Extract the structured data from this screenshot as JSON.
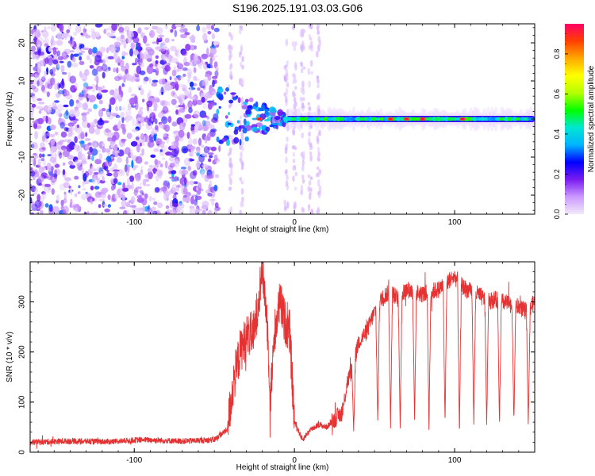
{
  "title": "S196.2025.191.03.03.G06",
  "chart_data": [
    {
      "type": "heatmap",
      "title": "S196.2025.191.03.03.G06",
      "xlabel": "Height of straight line (km)",
      "ylabel": "Frequency (Hz)",
      "xlim": [
        -165,
        150
      ],
      "ylim": [
        -25,
        25
      ],
      "x_ticks": [
        -100,
        0,
        100
      ],
      "y_ticks": [
        -20,
        -10,
        0,
        10,
        20
      ],
      "colorbar": {
        "label": "Normalized spectral amplitude",
        "range": [
          0.0,
          0.95
        ],
        "ticks": [
          0.0,
          0.2,
          0.4,
          0.6,
          0.8
        ],
        "colors": [
          "#f2eaf9",
          "#cc99ff",
          "#7a1cf0",
          "#0000ff",
          "#00b4ff",
          "#00e6d2",
          "#00ff00",
          "#b4ff00",
          "#ffff00",
          "#ffaa00",
          "#ff4000",
          "#ff0066"
        ]
      },
      "regions": [
        {
          "name": "noise",
          "x": [
            -165,
            -48
          ],
          "y": [
            -25,
            25
          ],
          "amplitude": 0.08
        },
        {
          "name": "transition",
          "x": [
            -48,
            -5
          ],
          "y": [
            -8,
            8
          ],
          "amplitude": 0.25
        },
        {
          "name": "signal-band",
          "x": [
            -5,
            150
          ],
          "y": [
            -0.5,
            0.5
          ],
          "amplitude": 0.55
        }
      ],
      "hot_spots": [
        {
          "x": -22,
          "y": 0.0
        },
        {
          "x": 60,
          "y": 0.0
        },
        {
          "x": 70,
          "y": 0.0
        },
        {
          "x": 80,
          "y": 0.0
        },
        {
          "x": 105,
          "y": 0.0
        }
      ]
    },
    {
      "type": "line",
      "xlabel": "Height of straight line (km)",
      "ylabel": "SNR (10 * v/v)",
      "xlim": [
        -165,
        150
      ],
      "ylim": [
        0,
        380
      ],
      "x_ticks": [
        -100,
        0,
        100
      ],
      "y_ticks": [
        0,
        100,
        200,
        300
      ],
      "color": "#e53333",
      "series": [
        {
          "x": [
            -165,
            -140,
            -115,
            -95,
            -70,
            -50,
            -42,
            -38,
            -34,
            -30,
            -25,
            -20,
            -17,
            -15,
            -12,
            -9,
            -6,
            -3,
            0,
            5,
            10,
            15,
            20,
            25,
            30,
            33,
            37,
            40,
            45,
            50,
            55,
            60,
            65,
            70,
            75,
            80,
            85,
            90,
            95,
            100,
            105,
            110,
            115,
            120,
            125,
            130,
            135,
            140,
            145,
            150
          ],
          "values": [
            20,
            22,
            21,
            25,
            22,
            25,
            45,
            140,
            200,
            230,
            240,
            370,
            260,
            110,
            250,
            300,
            260,
            240,
            60,
            25,
            45,
            55,
            50,
            65,
            80,
            140,
            175,
            220,
            240,
            280,
            310,
            320,
            305,
            325,
            320,
            315,
            320,
            325,
            340,
            350,
            330,
            320,
            315,
            300,
            305,
            300,
            295,
            290,
            280,
            300
          ]
        }
      ],
      "dropouts": [
        {
          "x": 37,
          "min": 30
        },
        {
          "x": 52,
          "min": 45
        },
        {
          "x": 60,
          "min": 40
        },
        {
          "x": 66,
          "min": 40
        },
        {
          "x": 75,
          "min": 50
        },
        {
          "x": 84,
          "min": 40
        },
        {
          "x": 94,
          "min": 45
        },
        {
          "x": 103,
          "min": 25
        },
        {
          "x": 112,
          "min": 40
        },
        {
          "x": 120,
          "min": 40
        },
        {
          "x": 128,
          "min": 45
        },
        {
          "x": 137,
          "min": 45
        },
        {
          "x": 146,
          "min": 40
        }
      ]
    }
  ]
}
